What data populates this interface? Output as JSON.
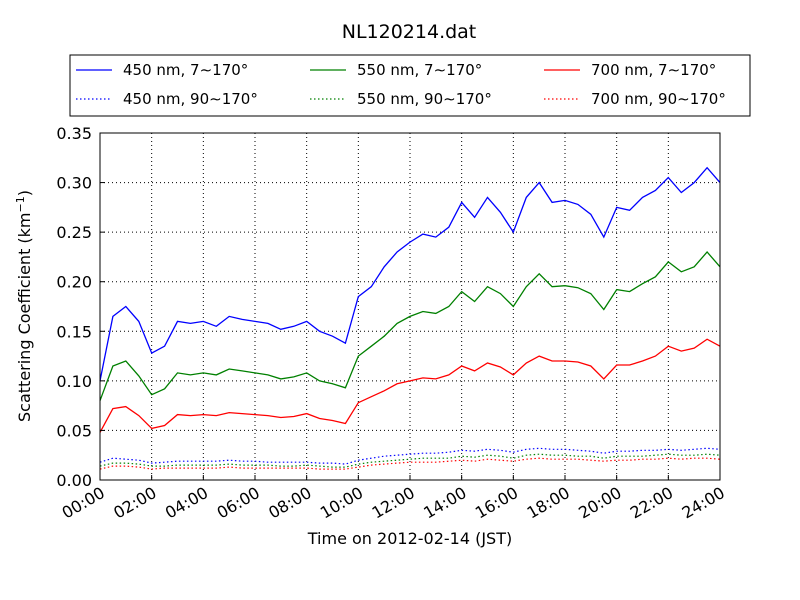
{
  "chart_data": {
    "type": "line",
    "title": "NL120214.dat",
    "xlabel": "Time on 2012-02-14 (JST)",
    "ylabel": "Scattering Coefficient (km",
    "ylabel_sup": "−1",
    "ylabel_close": ")",
    "xlim": [
      "00:00",
      "24:00"
    ],
    "ylim": [
      0,
      0.35
    ],
    "x_ticks": [
      "00:00",
      "02:00",
      "04:00",
      "06:00",
      "08:00",
      "10:00",
      "12:00",
      "14:00",
      "16:00",
      "18:00",
      "20:00",
      "22:00",
      "24:00"
    ],
    "y_ticks": [
      "0.00",
      "0.05",
      "0.10",
      "0.15",
      "0.20",
      "0.25",
      "0.30",
      "0.35"
    ],
    "grid": true,
    "legend_position": "top, above plot",
    "x": [
      "00:00",
      "00:30",
      "01:00",
      "01:30",
      "02:00",
      "02:30",
      "03:00",
      "03:30",
      "04:00",
      "04:30",
      "05:00",
      "05:30",
      "06:00",
      "06:30",
      "07:00",
      "07:30",
      "08:00",
      "08:30",
      "09:00",
      "09:30",
      "10:00",
      "10:30",
      "11:00",
      "11:30",
      "12:00",
      "12:30",
      "13:00",
      "13:30",
      "14:00",
      "14:30",
      "15:00",
      "15:30",
      "16:00",
      "16:30",
      "17:00",
      "17:30",
      "18:00",
      "18:30",
      "19:00",
      "19:30",
      "20:00",
      "20:30",
      "21:00",
      "21:30",
      "22:00",
      "22:30",
      "23:00",
      "23:30",
      "24:00"
    ],
    "series": [
      {
        "name": "450 nm, 7∼170°",
        "color": "#0000ff",
        "style": "solid",
        "values": [
          0.1,
          0.165,
          0.175,
          0.16,
          0.128,
          0.135,
          0.16,
          0.158,
          0.16,
          0.155,
          0.165,
          0.162,
          0.16,
          0.158,
          0.152,
          0.155,
          0.16,
          0.15,
          0.145,
          0.138,
          0.185,
          0.195,
          0.215,
          0.23,
          0.24,
          0.248,
          0.245,
          0.255,
          0.28,
          0.265,
          0.285,
          0.27,
          0.25,
          0.285,
          0.3,
          0.28,
          0.282,
          0.278,
          0.268,
          0.245,
          0.275,
          0.272,
          0.285,
          0.292,
          0.305,
          0.29,
          0.3,
          0.315,
          0.3
        ]
      },
      {
        "name": "450 nm, 90∼170°",
        "color": "#0000ff",
        "style": "dotted",
        "values": [
          0.018,
          0.022,
          0.021,
          0.02,
          0.017,
          0.018,
          0.019,
          0.019,
          0.019,
          0.019,
          0.02,
          0.019,
          0.019,
          0.018,
          0.018,
          0.018,
          0.018,
          0.017,
          0.017,
          0.016,
          0.02,
          0.022,
          0.024,
          0.025,
          0.026,
          0.027,
          0.027,
          0.028,
          0.03,
          0.029,
          0.031,
          0.03,
          0.028,
          0.031,
          0.032,
          0.031,
          0.031,
          0.03,
          0.029,
          0.027,
          0.029,
          0.029,
          0.03,
          0.03,
          0.031,
          0.03,
          0.031,
          0.032,
          0.031
        ]
      },
      {
        "name": "550 nm, 7∼170°",
        "color": "#008000",
        "style": "solid",
        "values": [
          0.08,
          0.115,
          0.12,
          0.105,
          0.086,
          0.092,
          0.108,
          0.106,
          0.108,
          0.106,
          0.112,
          0.11,
          0.108,
          0.106,
          0.102,
          0.104,
          0.108,
          0.1,
          0.097,
          0.093,
          0.125,
          0.135,
          0.145,
          0.158,
          0.165,
          0.17,
          0.168,
          0.175,
          0.19,
          0.18,
          0.195,
          0.188,
          0.175,
          0.195,
          0.208,
          0.195,
          0.196,
          0.194,
          0.188,
          0.172,
          0.192,
          0.19,
          0.198,
          0.205,
          0.22,
          0.21,
          0.215,
          0.23,
          0.215
        ]
      },
      {
        "name": "550 nm, 90∼170°",
        "color": "#008000",
        "style": "dotted",
        "values": [
          0.014,
          0.017,
          0.017,
          0.016,
          0.014,
          0.014,
          0.015,
          0.015,
          0.015,
          0.015,
          0.016,
          0.015,
          0.015,
          0.015,
          0.014,
          0.014,
          0.015,
          0.014,
          0.013,
          0.013,
          0.016,
          0.018,
          0.019,
          0.02,
          0.021,
          0.022,
          0.022,
          0.022,
          0.024,
          0.023,
          0.025,
          0.024,
          0.022,
          0.025,
          0.026,
          0.025,
          0.025,
          0.024,
          0.024,
          0.022,
          0.024,
          0.024,
          0.024,
          0.025,
          0.026,
          0.025,
          0.025,
          0.026,
          0.025
        ]
      },
      {
        "name": "700 nm, 7∼170°",
        "color": "#ff0000",
        "style": "solid",
        "values": [
          0.048,
          0.072,
          0.074,
          0.065,
          0.052,
          0.055,
          0.066,
          0.065,
          0.066,
          0.065,
          0.068,
          0.067,
          0.066,
          0.065,
          0.063,
          0.064,
          0.067,
          0.062,
          0.06,
          0.057,
          0.078,
          0.084,
          0.09,
          0.097,
          0.1,
          0.103,
          0.102,
          0.106,
          0.115,
          0.11,
          0.118,
          0.114,
          0.106,
          0.118,
          0.125,
          0.12,
          0.12,
          0.119,
          0.115,
          0.102,
          0.116,
          0.116,
          0.12,
          0.125,
          0.135,
          0.13,
          0.133,
          0.142,
          0.135
        ]
      },
      {
        "name": "700 nm, 90∼170°",
        "color": "#ff0000",
        "style": "dotted",
        "values": [
          0.011,
          0.014,
          0.014,
          0.013,
          0.011,
          0.012,
          0.012,
          0.012,
          0.012,
          0.012,
          0.013,
          0.012,
          0.012,
          0.012,
          0.012,
          0.012,
          0.012,
          0.011,
          0.011,
          0.011,
          0.013,
          0.015,
          0.016,
          0.017,
          0.018,
          0.018,
          0.018,
          0.019,
          0.02,
          0.019,
          0.021,
          0.02,
          0.019,
          0.021,
          0.022,
          0.021,
          0.021,
          0.021,
          0.02,
          0.019,
          0.02,
          0.02,
          0.021,
          0.021,
          0.022,
          0.021,
          0.022,
          0.022,
          0.021
        ]
      }
    ]
  }
}
